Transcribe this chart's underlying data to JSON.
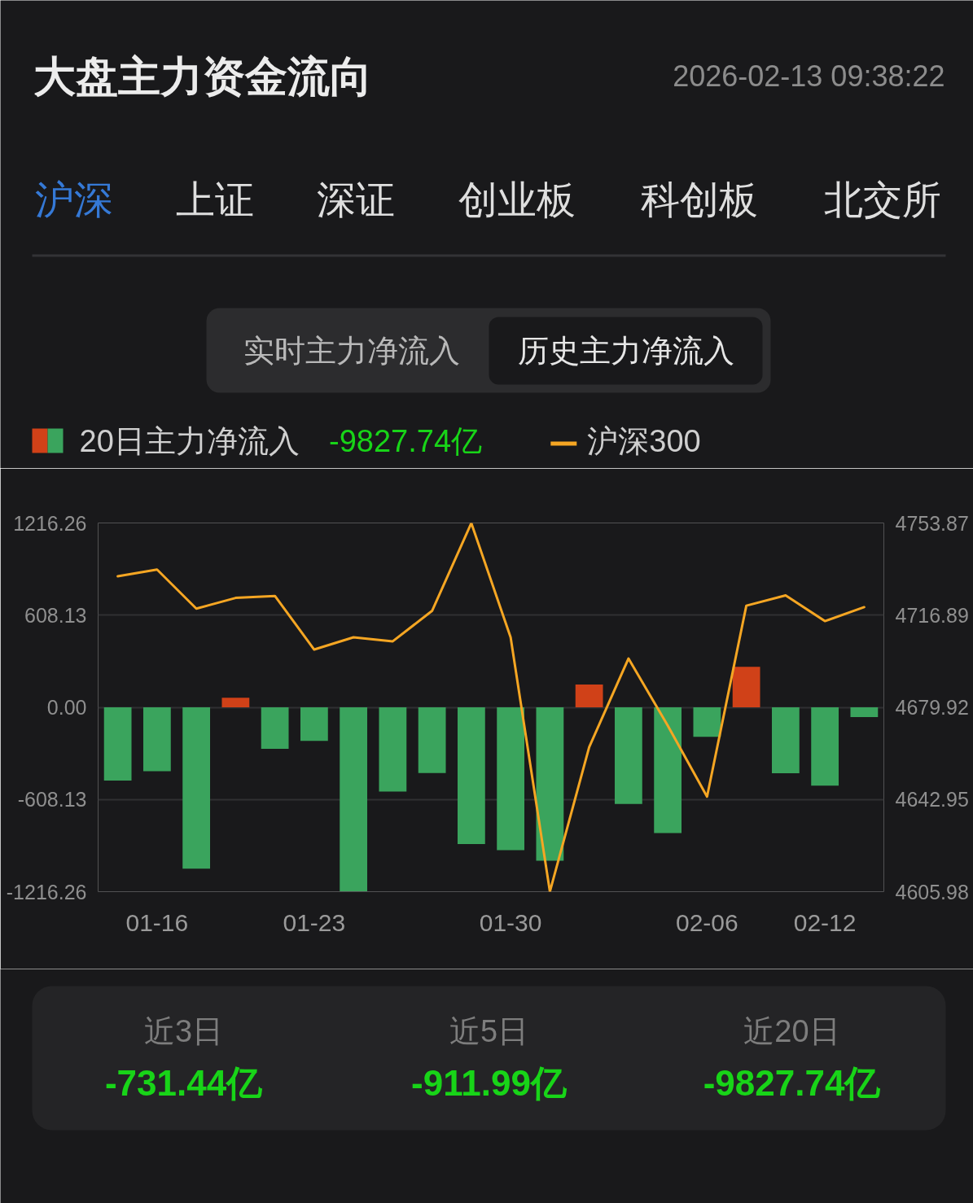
{
  "chart_data": {
    "type": "bar",
    "title": "大盘主力资金流向",
    "subtitle": "2026-02-13 09:38:22",
    "categories": [
      null,
      "01-16",
      null,
      null,
      null,
      "01-23",
      null,
      null,
      null,
      null,
      "01-30",
      null,
      null,
      null,
      null,
      "02-06",
      null,
      null,
      "02-12",
      null
    ],
    "series": [
      {
        "name": "20日主力净流入",
        "colors": [
          "#3aa45d",
          "#3aa45d",
          "#3aa45d",
          "#d04118",
          "#3aa45d",
          "#3aa45d",
          "#3aa45d",
          "#3aa45d",
          "#3aa45d",
          "#3aa45d",
          "#3aa45d",
          "#3aa45d",
          "#d04118",
          "#3aa45d",
          "#3aa45d",
          "#3aa45d",
          "#d04118",
          "#3aa45d",
          "#3aa45d",
          "#3aa45d"
        ],
        "values": [
          -483,
          -421,
          -1065,
          63,
          -274,
          -221,
          -1214,
          -556,
          -433,
          -902,
          -942,
          -1012,
          150,
          -638,
          -829,
          -195,
          267,
          -435,
          -517,
          -64
        ]
      },
      {
        "name": "沪深300",
        "type": "line",
        "axis": "y2",
        "color": "#f5a623",
        "values": [
          4732.5,
          4735.2,
          4719.5,
          4723.8,
          4724.6,
          4703.1,
          4708.0,
          4706.4,
          4718.6,
          4753.8,
          4708.0,
          4606.0,
          4664.0,
          4699.5,
          4672.6,
          4644.1,
          4720.7,
          4724.8,
          4714.5,
          4720.1
        ]
      }
    ],
    "ylim": [
      -1216.26,
      1216.26
    ],
    "yticks": [
      -1216.26,
      -608.13,
      {
        "value": 0,
        "label": "0.00"
      },
      608.13,
      1216.26
    ],
    "y2lim": [
      4605.98,
      4753.87
    ],
    "y2ticks": [
      4605.98,
      4642.95,
      4679.92,
      4716.89,
      4753.87
    ],
    "grid": "y",
    "legend": "top left",
    "annotations": [
      "沪深",
      "上证",
      "深证",
      "创业板",
      "科创板",
      "北交所",
      "实时主力净流入",
      "历史主力净流入",
      "-9827.74亿",
      "近3日",
      "-731.44亿",
      "近5日",
      "-911.99亿",
      "近20日",
      "-9827.74亿"
    ]
  }
}
